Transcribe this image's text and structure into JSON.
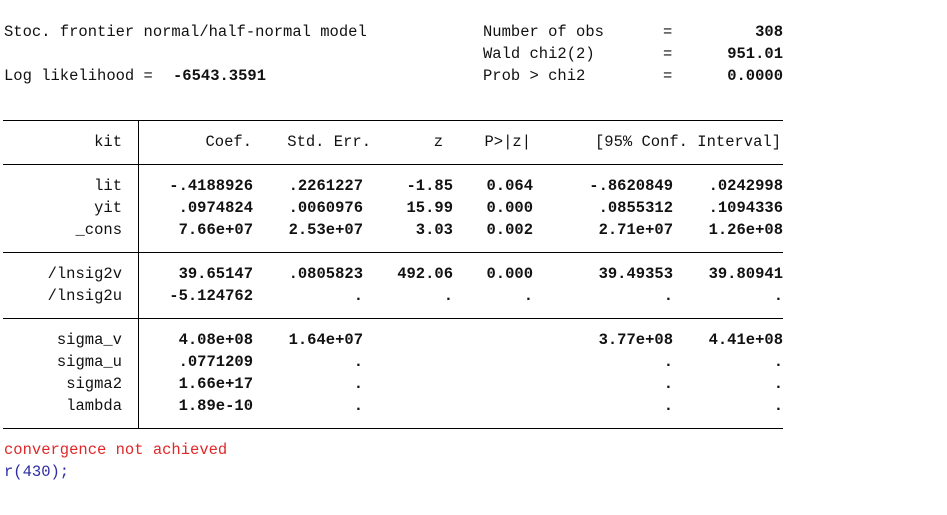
{
  "header": {
    "title": "Stoc. frontier normal/half-normal model",
    "log_likelihood": {
      "label": "Log likelihood =",
      "value": "-6543.3591"
    },
    "stats": [
      {
        "label": "Number of obs",
        "eq": "=",
        "value": "308"
      },
      {
        "label": "Wald chi2(2)",
        "eq": "=",
        "value": "951.01"
      },
      {
        "label": "Prob > chi2",
        "eq": "=",
        "value": "0.0000"
      }
    ]
  },
  "table": {
    "columns": [
      "kit",
      "Coef.",
      "Std. Err.",
      "z",
      "P>|z|",
      "[95% Conf. Interval]"
    ],
    "groups": [
      {
        "rows": [
          [
            "lit",
            "-.4188926",
            ".2261227",
            "-1.85",
            "0.064",
            "-.8620849",
            ".0242998"
          ],
          [
            "yit",
            ".0974824",
            ".0060976",
            "15.99",
            "0.000",
            ".0855312",
            ".1094336"
          ],
          [
            "_cons",
            "7.66e+07",
            "2.53e+07",
            "3.03",
            "0.002",
            "2.71e+07",
            "1.26e+08"
          ]
        ]
      },
      {
        "rows": [
          [
            "/lnsig2v",
            "39.65147",
            ".0805823",
            "492.06",
            "0.000",
            "39.49353",
            "39.80941"
          ],
          [
            "/lnsig2u",
            "-5.124762",
            ".",
            ".",
            ".",
            ".",
            "."
          ]
        ]
      },
      {
        "rows": [
          [
            "sigma_v",
            "4.08e+08",
            "1.64e+07",
            "",
            "",
            "3.77e+08",
            "4.41e+08"
          ],
          [
            "sigma_u",
            ".0771209",
            ".",
            "",
            "",
            ".",
            "."
          ],
          [
            "sigma2",
            "1.66e+17",
            ".",
            "",
            "",
            ".",
            "."
          ],
          [
            "lambda",
            "1.89e-10",
            ".",
            "",
            "",
            ".",
            "."
          ]
        ]
      }
    ]
  },
  "footer": {
    "error": "convergence not achieved",
    "return_code": "r(430);"
  }
}
